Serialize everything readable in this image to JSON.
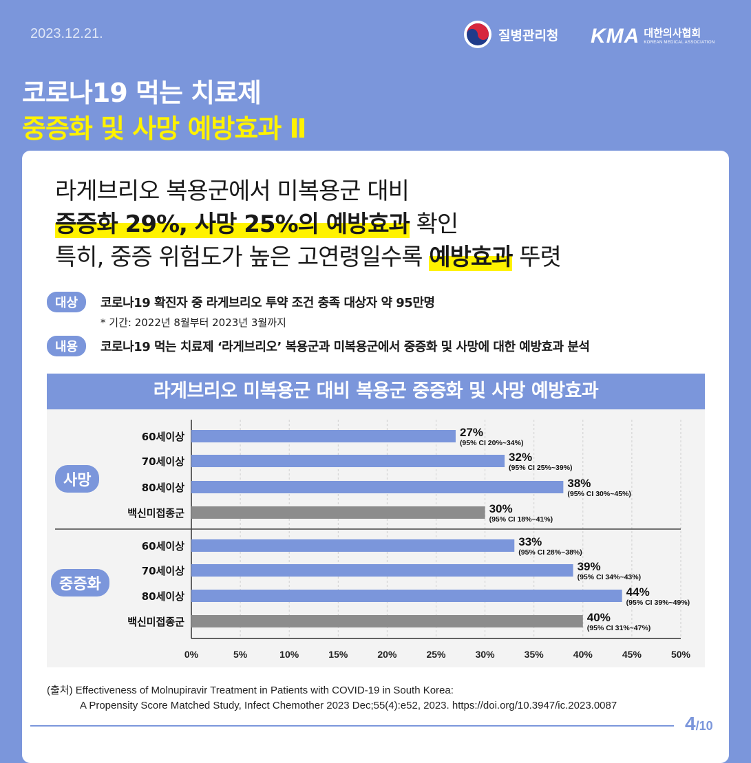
{
  "date": "2023.12.21.",
  "logos": {
    "kdca": "질병관리청",
    "kma_mark": "KMA",
    "kma_name": "대한의사협회",
    "kma_en": "KOREAN MEDICAL ASSOCIATION"
  },
  "title": {
    "line1": "코로나19 먹는 치료제",
    "line2": "중증화 및 사망 예방효과  Ⅱ"
  },
  "headline": {
    "line1": "라게브리오 복용군에서 미복용군 대비",
    "line2_bold": "증증화 29%, 사망 25%의 예방효과",
    "line2_rest": " 확인",
    "line3_pre": "특히, 중증 위험도가 높은 고연령일수록 ",
    "line3_bold": "예방효과",
    "line3_post": " 뚜렷"
  },
  "info": {
    "target_tag": "대상",
    "target_text": "코로나19 확진자 중 라게브리오 투약 조건 충족 대상자 약 95만명",
    "period": "* 기간: 2022년 8월부터 2023년 3월까지",
    "content_tag": "내용",
    "content_text": "코로나19 먹는 치료제 ‘라게브리오’ 복용군과 미복용군에서 중증화 및 사망에 대한 예방효과 분석"
  },
  "chart_data": {
    "type": "bar",
    "orientation": "horizontal",
    "title": "라게브리오 미복용군 대비 복용군 중증화 및 사망 예방효과",
    "xlim": [
      0,
      50
    ],
    "xticks": [
      "0%",
      "5%",
      "10%",
      "15%",
      "20%",
      "25%",
      "30%",
      "35%",
      "40%",
      "45%",
      "50%"
    ],
    "grid": true,
    "groups": [
      {
        "name": "사망",
        "bars": [
          {
            "label": "60세이상",
            "value": 27,
            "text": "27%",
            "ci": "(95% CI 20%~34%)",
            "color": "#7b96db"
          },
          {
            "label": "70세이상",
            "value": 32,
            "text": "32%",
            "ci": "(95% CI 25%~39%)",
            "color": "#7b96db"
          },
          {
            "label": "80세이상",
            "value": 38,
            "text": "38%",
            "ci": "(95% CI 30%~45%)",
            "color": "#7b96db"
          },
          {
            "label": "백신미접종군",
            "value": 30,
            "text": "30%",
            "ci": "(95% CI 18%~41%)",
            "color": "#8c8c8c"
          }
        ]
      },
      {
        "name": "중증화",
        "bars": [
          {
            "label": "60세이상",
            "value": 33,
            "text": "33%",
            "ci": "(95% CI 28%~38%)",
            "color": "#7b96db"
          },
          {
            "label": "70세이상",
            "value": 39,
            "text": "39%",
            "ci": "(95% CI 34%~43%)",
            "color": "#7b96db"
          },
          {
            "label": "80세이상",
            "value": 44,
            "text": "44%",
            "ci": "(95% CI 39%~49%)",
            "color": "#7b96db"
          },
          {
            "label": "백신미접종군",
            "value": 40,
            "text": "40%",
            "ci": "(95% CI 31%~47%)",
            "color": "#8c8c8c"
          }
        ]
      }
    ]
  },
  "source": {
    "line1": "(출처) Effectiveness of Molnupiravir Treatment in Patients with COVID-19 in South Korea:",
    "line2": "A Propensity Score Matched Study, Infect Chemother 2023 Dec;55(4):e52, 2023. https://doi.org/10.3947/ic.2023.0087"
  },
  "page": {
    "current": "4",
    "total": "/10"
  }
}
